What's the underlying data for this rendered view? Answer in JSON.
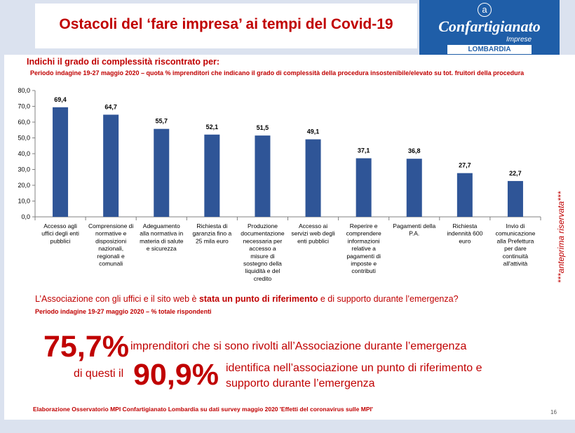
{
  "header": {
    "title": "Ostacoli del ‘fare impresa’ ai tempi del Covid-19",
    "logo_brand": "Confartigianato",
    "logo_sub": "Imprese",
    "logo_region": "LOMBARDIA",
    "logo_mark": "a"
  },
  "question1": {
    "title": "Indichi il grado di complessità riscontrato per:",
    "subtitle": "Periodo indagine 19-27 maggio 2020 – quota % imprenditori che indicano il grado di complessità della procedura  insostenibile/elevato su tot. fruitori della procedura"
  },
  "chart_data": {
    "type": "bar",
    "categories": [
      "Accesso agli uffici degli enti pubblici",
      "Comprensione di normative e disposizioni nazionali, regionali e comunali",
      "Adeguamento alla normativa in materia di salute e sicurezza",
      "Richiesta di garanzia fino a 25 mila euro",
      "Produzione documentazione necessaria per accesso a misure di sostegno della liquidità e del credito",
      "Accesso ai servizi web degli enti pubblici",
      "Reperire e comprendere informazioni relative a pagamenti di imposte e contributi",
      "Pagamenti della P.A.",
      "Richiesta indennità 600 euro",
      "Invio di comunicazione alla Prefettura per dare continuità all'attività"
    ],
    "category_lines": [
      [
        "Accesso agli",
        "uffici degli enti",
        "pubblici"
      ],
      [
        "Comprensione di",
        "normative e",
        "disposizioni",
        "nazionali,",
        "regionali e",
        "comunali"
      ],
      [
        "Adeguamento",
        "alla normativa in",
        "materia di salute",
        "e sicurezza"
      ],
      [
        "Richiesta di",
        "garanzia fino a",
        "25 mila euro"
      ],
      [
        "Produzione",
        "documentazione",
        "necessaria per",
        "accesso a",
        "misure di",
        "sostegno della",
        "liquidità e del",
        "credito"
      ],
      [
        "Accesso ai",
        "servizi web degli",
        "enti pubblici"
      ],
      [
        "Reperire e",
        "comprendere",
        "informazioni",
        "relative a",
        "pagamenti di",
        "imposte e",
        "contributi"
      ],
      [
        "Pagamenti della",
        "P.A."
      ],
      [
        "Richiesta",
        "indennità 600",
        "euro"
      ],
      [
        "Invio di",
        "comunicazione",
        "alla Prefettura",
        "per dare",
        "continuità",
        "all'attività"
      ]
    ],
    "values": [
      69.4,
      64.7,
      55.7,
      52.1,
      51.5,
      49.1,
      37.1,
      36.8,
      27.7,
      22.7
    ],
    "value_labels": [
      "69,4",
      "64,7",
      "55,7",
      "52,1",
      "51,5",
      "49,1",
      "37,1",
      "36,8",
      "27,7",
      "22,7"
    ],
    "ylim": [
      0,
      80
    ],
    "yticks": [
      "0,0",
      "10,0",
      "20,0",
      "30,0",
      "40,0",
      "50,0",
      "60,0",
      "70,0",
      "80,0"
    ],
    "bar_color": "#2f5597",
    "grid": false
  },
  "watermark": "***anteprima riservata***",
  "question2": {
    "title_a": "L’Associazione con gli uffici e il sito web è ",
    "title_b": "stata un punto di riferimento",
    "title_c": "  e di supporto durante l’emergenza",
    "title_d": "?",
    "subtitle": "Periodo indagine 19-27 maggio 2020 – % totale rispondenti"
  },
  "stats": {
    "big1": "75,7%",
    "text1": "imprenditori che si sono rivolti all’Associazione durante l’emergenza",
    "prefix2": "di questi il",
    "big2": "90,9%",
    "text2": "identifica nell’associazione un punto di riferimento e supporto durante l’emergenza"
  },
  "footer": {
    "source": "Elaborazione Osservatorio MPI Confartigianato Lombardia su dati survey maggio 2020  'Effetti del coronavirus sulle MPI'",
    "page": "16"
  },
  "colors": {
    "accent_red": "#c00000",
    "band": "#dbe2ef",
    "brand_blue": "#1f5ea8"
  }
}
